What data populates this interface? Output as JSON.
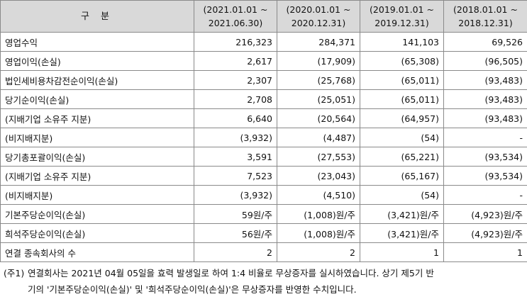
{
  "table": {
    "header": {
      "label": "구 분",
      "periods": [
        {
          "line1": "(2021.01.01 ~",
          "line2": "2021.06.30)"
        },
        {
          "line1": "(2020.01.01 ~",
          "line2": "2020.12.31)"
        },
        {
          "line1": "(2019.01.01 ~",
          "line2": "2019.12.31)"
        },
        {
          "line1": "(2018.01.01 ~",
          "line2": "2018.12.31)"
        }
      ]
    },
    "rows": [
      {
        "label": "영업수익",
        "values": [
          "216,323",
          "284,371",
          "141,103",
          "69,526"
        ]
      },
      {
        "label": "영업이익(손실)",
        "values": [
          "2,617",
          "(17,909)",
          "(65,308)",
          "(96,505)"
        ]
      },
      {
        "label": "법인세비용차감전순이익(손실)",
        "values": [
          "2,307",
          "(25,768)",
          "(65,011)",
          "(93,483)"
        ]
      },
      {
        "label": "당기순이익(손실)",
        "values": [
          "2,708",
          "(25,051)",
          "(65,011)",
          "(93,483)"
        ]
      },
      {
        "label": "(지배기업 소유주 지분)",
        "values": [
          "6,640",
          "(20,564)",
          "(64,957)",
          "(93,483)"
        ]
      },
      {
        "label": "(비지배지분)",
        "values": [
          "(3,932)",
          "(4,487)",
          "(54)",
          "-"
        ]
      },
      {
        "label": "당기총포괄이익(손실)",
        "values": [
          "3,591",
          "(27,553)",
          "(65,221)",
          "(93,534)"
        ]
      },
      {
        "label": "(지배기업 소유주 지분)",
        "values": [
          "7,523",
          "(23,043)",
          "(65,167)",
          "(93,534)"
        ]
      },
      {
        "label": "(비지배지분)",
        "values": [
          "(3,932)",
          "(4,510)",
          "(54)",
          "-"
        ]
      },
      {
        "label": "기본주당순이익(손실)",
        "values": [
          "59원/주",
          "(1,008)원/주",
          "(3,421)원/주",
          "(4,923)원/주"
        ]
      },
      {
        "label": "희석주당순이익(손실)",
        "values": [
          "56원/주",
          "(1,008)원/주",
          "(3,421)원/주",
          "(4,923)원/주"
        ]
      },
      {
        "label": "연결 종속회사의 수",
        "values": [
          "2",
          "2",
          "1",
          "1"
        ]
      }
    ]
  },
  "note": {
    "marker": "(주1)",
    "line1": "연결회사는 2021년 04월 05일을 효력 발생일로 하여 1:4 비율로 무상증자를 실시하였습니다. 상기 제5기 반",
    "line2": "기의 '기본주당순이익(손실)' 및 '희석주당순이익(손실)'은 무상증자를 반영한 수치입니다."
  }
}
